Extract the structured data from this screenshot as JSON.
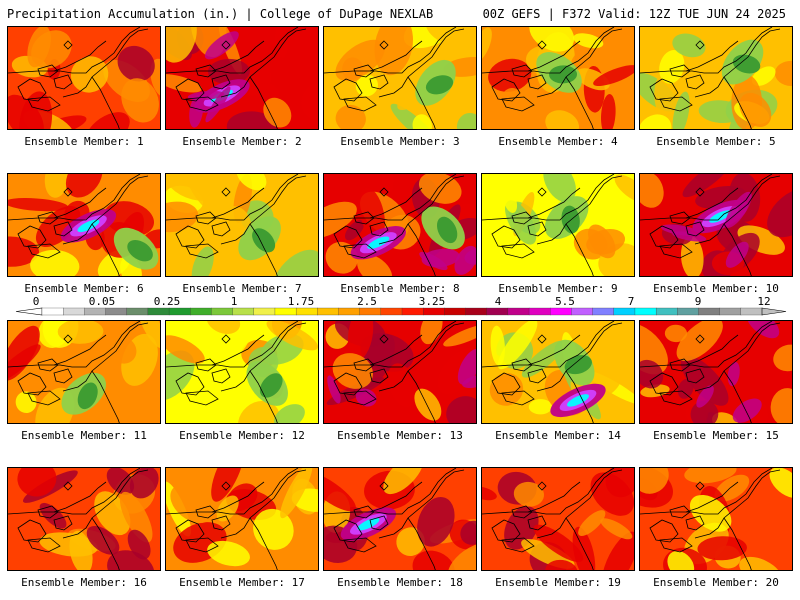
{
  "header": {
    "title": "Precipitation Accumulation (in.) | College of DuPage NEXLAB",
    "run_info": "00Z GEFS | F372 Valid: 12Z TUE JUN 24 2025"
  },
  "panel_label_prefix": "Ensemble Member: ",
  "members": [
    {
      "label": "Ensemble Member: 1",
      "level": 3.0,
      "wet_blob": 0,
      "dry_blob": 0
    },
    {
      "label": "Ensemble Member: 2",
      "level": 3.4,
      "wet_blob": 1,
      "dry_blob": 0
    },
    {
      "label": "Ensemble Member: 3",
      "level": 2.2,
      "wet_blob": 0,
      "dry_blob": 1
    },
    {
      "label": "Ensemble Member: 4",
      "level": 2.4,
      "wet_blob": 0,
      "dry_blob": 1
    },
    {
      "label": "Ensemble Member: 5",
      "level": 2.2,
      "wet_blob": 0,
      "dry_blob": 1
    },
    {
      "label": "Ensemble Member: 6",
      "level": 2.7,
      "wet_blob": 1,
      "dry_blob": 1
    },
    {
      "label": "Ensemble Member: 7",
      "level": 2.0,
      "wet_blob": 0,
      "dry_blob": 1
    },
    {
      "label": "Ensemble Member: 8",
      "level": 3.3,
      "wet_blob": 1,
      "dry_blob": 1
    },
    {
      "label": "Ensemble Member: 9",
      "level": 1.8,
      "wet_blob": 0,
      "dry_blob": 1
    },
    {
      "label": "Ensemble Member: 10",
      "level": 3.4,
      "wet_blob": 1,
      "dry_blob": 0
    },
    {
      "label": "Ensemble Member: 11",
      "level": 2.6,
      "wet_blob": 0,
      "dry_blob": 1
    },
    {
      "label": "Ensemble Member: 12",
      "level": 1.9,
      "wet_blob": 0,
      "dry_blob": 1
    },
    {
      "label": "Ensemble Member: 13",
      "level": 3.5,
      "wet_blob": 0,
      "dry_blob": 0
    },
    {
      "label": "Ensemble Member: 14",
      "level": 2.3,
      "wet_blob": 1,
      "dry_blob": 1
    },
    {
      "label": "Ensemble Member: 15",
      "level": 3.6,
      "wet_blob": 0,
      "dry_blob": 0
    },
    {
      "label": "Ensemble Member: 16",
      "level": 3.1,
      "wet_blob": 0,
      "dry_blob": 0
    },
    {
      "label": "Ensemble Member: 17",
      "level": 2.6,
      "wet_blob": 0,
      "dry_blob": 0
    },
    {
      "label": "Ensemble Member: 18",
      "level": 3.0,
      "wet_blob": 1,
      "dry_blob": 0
    },
    {
      "label": "Ensemble Member: 19",
      "level": 3.1,
      "wet_blob": 0,
      "dry_blob": 0
    },
    {
      "label": "Ensemble Member: 20",
      "level": 2.9,
      "wet_blob": 0,
      "dry_blob": 0
    }
  ],
  "colorbar": {
    "tick_labels": [
      "0",
      "0.05",
      "0.25",
      "1",
      "1.75",
      "2.5",
      "3.25",
      "4",
      "5.5",
      "7",
      "9",
      "12"
    ],
    "colors": [
      "#ffffff",
      "#d9d9d9",
      "#b3b3b3",
      "#8c8c8c",
      "#6b8e6b",
      "#2e8b3a",
      "#1f9b2f",
      "#3fae2a",
      "#7cc83a",
      "#b8e04a",
      "#f0f04a",
      "#ffff00",
      "#ffe000",
      "#ffc000",
      "#ffa000",
      "#ff7a00",
      "#ff4500",
      "#ff1a00",
      "#e60000",
      "#c80000",
      "#a8001a",
      "#a00050",
      "#c0008a",
      "#e000c0",
      "#ff00ff",
      "#c060ff",
      "#8080ff",
      "#00d0ff",
      "#00ffff",
      "#40c0c0",
      "#60a0a0",
      "#808080",
      "#a0a0a0",
      "#c0c0c0"
    ]
  },
  "palette": {
    "dry_green": "#3a9a32",
    "light_green": "#8fd14a",
    "yellow": "#ffff00",
    "gold": "#ffc000",
    "orange": "#ff8c00",
    "red_orange": "#ff4000",
    "red": "#e60000",
    "dark_red": "#a8002a",
    "magenta": "#c0008a",
    "purple": "#d040ff",
    "cyan": "#00ffff",
    "gray": "#8a8a8a"
  }
}
